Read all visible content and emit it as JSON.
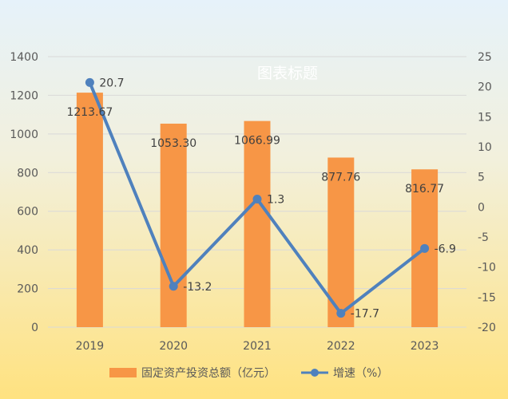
{
  "chart_data": {
    "type": "bar",
    "title": "图表标题",
    "categories": [
      "2019",
      "2020",
      "2021",
      "2022",
      "2023"
    ],
    "series": [
      {
        "name": "固定资产投资总额（亿元）",
        "type": "bar",
        "axis": "left",
        "color": "#F79646",
        "values": [
          1213.67,
          1053.3,
          1066.99,
          877.76,
          816.77
        ],
        "labels": [
          "1213.67",
          "1053.30",
          "1066.99",
          "877.76",
          "816.77"
        ]
      },
      {
        "name": "增速（%）",
        "type": "line",
        "axis": "right",
        "color": "#4F81BD",
        "values": [
          20.7,
          -13.2,
          1.3,
          -17.7,
          -6.9
        ],
        "labels": [
          "20.7",
          "-13.2",
          "1.3",
          "-17.7",
          "-6.9"
        ]
      }
    ],
    "y_left": {
      "min": 0,
      "max": 1400,
      "ticks": [
        "0",
        "200",
        "400",
        "600",
        "800",
        "1000",
        "1200",
        "1400"
      ]
    },
    "y_right": {
      "min": -20,
      "max": 25,
      "ticks": [
        "-20",
        "-15",
        "-10",
        "-5",
        "0",
        "5",
        "10",
        "15",
        "20",
        "25"
      ]
    },
    "grid": true,
    "legend": "bottom",
    "background": {
      "top": "#E6F2FA",
      "bottom": "#FFE280"
    }
  }
}
